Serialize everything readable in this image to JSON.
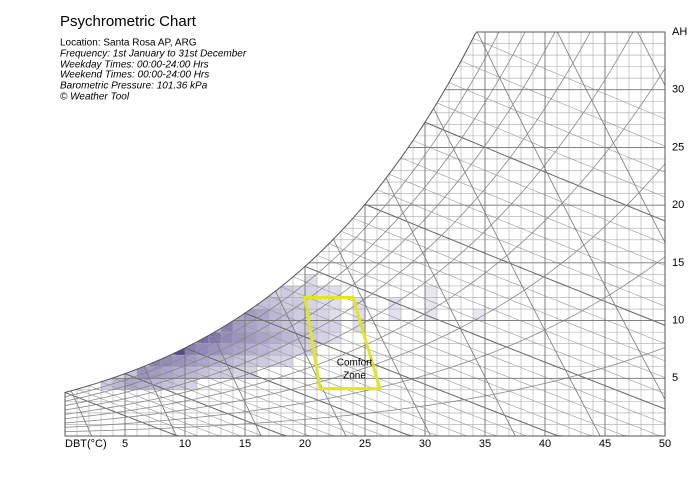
{
  "chart_data": {
    "type": "psychrometric",
    "title": "Psychrometric Chart",
    "info_lines": [
      "Location: Santa Rosa AP, ARG",
      "Frequency: 1st January to 31st December",
      "Weekday Times: 00:00-24:00 Hrs",
      "Weekend Times: 00:00-24:00 Hrs",
      "Barometric Pressure: 101.36 kPa",
      "© Weather Tool"
    ],
    "x_label": "DBT(°C)",
    "y_label": "AH",
    "xlim": [
      0,
      50
    ],
    "ylim": [
      0,
      35
    ],
    "xticks": [
      5,
      10,
      15,
      20,
      25,
      30,
      35,
      40,
      45,
      50
    ],
    "yticks": [
      5,
      10,
      15,
      20,
      25,
      30
    ],
    "cell_color": "#4b3a8c",
    "cells": {
      "dbt": [
        3,
        4,
        4,
        5,
        5,
        6,
        6,
        6,
        7,
        7,
        7,
        8,
        8,
        8,
        8,
        9,
        9,
        9,
        9,
        10,
        10,
        10,
        10,
        10,
        11,
        11,
        11,
        11,
        12,
        12,
        12,
        12,
        12,
        13,
        13,
        13,
        13,
        13,
        14,
        14,
        14,
        14,
        14,
        14,
        15,
        15,
        15,
        15,
        15,
        15,
        15,
        16,
        16,
        16,
        16,
        16,
        16,
        17,
        17,
        17,
        17,
        17,
        17,
        17,
        18,
        18,
        18,
        18,
        18,
        18,
        18,
        19,
        19,
        19,
        19,
        19,
        19,
        20,
        20,
        20,
        20,
        20,
        20,
        20,
        21,
        21,
        21,
        21,
        21,
        22,
        22,
        22,
        22,
        22,
        24,
        24,
        24,
        27,
        27,
        30,
        30,
        30,
        34
      ],
      "ah": [
        4,
        4,
        5,
        4,
        5,
        4,
        5,
        6,
        4,
        5,
        6,
        4,
        5,
        6,
        7,
        4,
        5,
        6,
        7,
        4,
        5,
        6,
        7,
        8,
        5,
        6,
        7,
        8,
        5,
        6,
        7,
        8,
        9,
        5,
        6,
        7,
        8,
        9,
        5,
        6,
        7,
        8,
        9,
        10,
        5,
        6,
        7,
        8,
        9,
        10,
        11,
        6,
        7,
        8,
        9,
        10,
        11,
        6,
        7,
        8,
        9,
        10,
        11,
        12,
        6,
        7,
        8,
        9,
        10,
        11,
        12,
        7,
        8,
        9,
        10,
        11,
        12,
        7,
        8,
        9,
        10,
        11,
        12,
        13,
        8,
        9,
        10,
        11,
        12,
        8,
        9,
        10,
        11,
        12,
        9,
        10,
        11,
        10,
        11,
        10,
        11,
        12,
        10
      ],
      "values": [
        20,
        30,
        10,
        40,
        25,
        35,
        50,
        15,
        30,
        45,
        60,
        25,
        40,
        55,
        30,
        20,
        35,
        50,
        90,
        15,
        30,
        45,
        60,
        40,
        25,
        40,
        55,
        70,
        20,
        35,
        50,
        65,
        35,
        20,
        30,
        45,
        55,
        60,
        15,
        25,
        40,
        50,
        45,
        40,
        15,
        20,
        35,
        45,
        40,
        45,
        20,
        20,
        30,
        40,
        35,
        40,
        25,
        15,
        25,
        35,
        30,
        30,
        25,
        15,
        15,
        20,
        30,
        25,
        25,
        20,
        20,
        15,
        25,
        20,
        20,
        20,
        15,
        15,
        20,
        20,
        15,
        15,
        15,
        10,
        15,
        15,
        15,
        10,
        10,
        10,
        15,
        10,
        10,
        10,
        10,
        10,
        10,
        8,
        8,
        5,
        5,
        5,
        5
      ]
    },
    "comfort_zone": {
      "label_lines": [
        "Comfort",
        "Zone"
      ],
      "dbt": [
        20,
        24,
        26.25,
        21.25
      ],
      "ah": [
        12,
        12,
        4.1,
        4.1
      ],
      "color": "#e0e620"
    }
  }
}
